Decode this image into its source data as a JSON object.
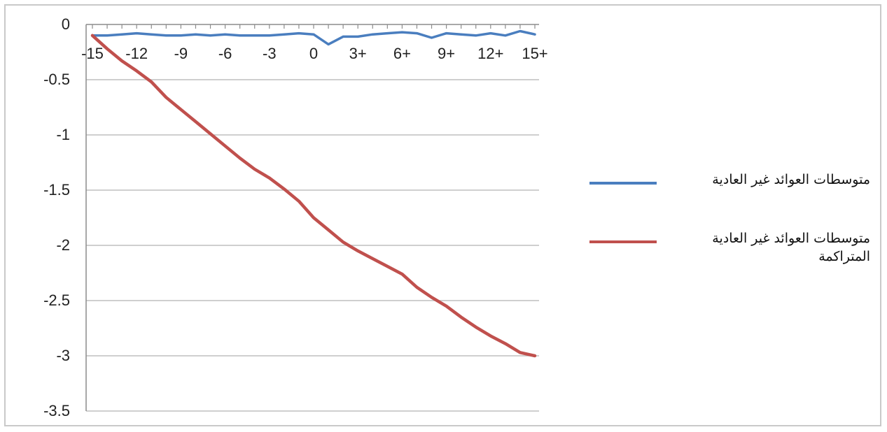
{
  "chart_data": {
    "type": "line",
    "title": "",
    "xlabel": "",
    "ylabel": "",
    "x_categories": [
      "-15",
      "-14",
      "-13",
      "-12",
      "-11",
      "-10",
      "-9",
      "-8",
      "-7",
      "-6",
      "-5",
      "-4",
      "-3",
      "-2",
      "-1",
      "0",
      "1",
      "2",
      "3+",
      "4+",
      "5+",
      "6+",
      "7+",
      "8+",
      "9+",
      "10+",
      "11+",
      "12+",
      "13+",
      "14+",
      "15+"
    ],
    "x_tick_labels": [
      "-15",
      "-12",
      "-9",
      "-6",
      "-3",
      "0",
      "3+",
      "6+",
      "9+",
      "12+",
      "15+"
    ],
    "ylim": [
      -3.5,
      0
    ],
    "y_ticks": [
      "0",
      "-0.5",
      "-1",
      "-1.5",
      "-2",
      "-2.5",
      "-3",
      "-3.5"
    ],
    "y_tick_values": [
      0,
      -0.5,
      -1,
      -1.5,
      -2,
      -2.5,
      -3,
      -3.5
    ],
    "grid": true,
    "legend_position": "right",
    "series": [
      {
        "name": "متوسطات العوائد غير العادية",
        "color": "#4a7ebf",
        "values": [
          -0.1,
          -0.1,
          -0.09,
          -0.08,
          -0.09,
          -0.1,
          -0.1,
          -0.09,
          -0.1,
          -0.09,
          -0.1,
          -0.1,
          -0.1,
          -0.09,
          -0.08,
          -0.09,
          -0.18,
          -0.11,
          -0.11,
          -0.09,
          -0.08,
          -0.07,
          -0.08,
          -0.12,
          -0.08,
          -0.09,
          -0.1,
          -0.08,
          -0.1,
          -0.06,
          -0.09
        ]
      },
      {
        "name": "متوسطات العوائد غير العادية المتراكمة",
        "color": "#c0504d",
        "values": [
          -0.1,
          -0.22,
          -0.33,
          -0.42,
          -0.52,
          -0.66,
          -0.77,
          -0.88,
          -0.99,
          -1.1,
          -1.21,
          -1.31,
          -1.39,
          -1.49,
          -1.6,
          -1.75,
          -1.86,
          -1.97,
          -2.05,
          -2.12,
          -2.19,
          -2.26,
          -2.38,
          -2.47,
          -2.55,
          -2.65,
          -2.74,
          -2.82,
          -2.89,
          -2.97,
          -3.0
        ]
      }
    ]
  }
}
